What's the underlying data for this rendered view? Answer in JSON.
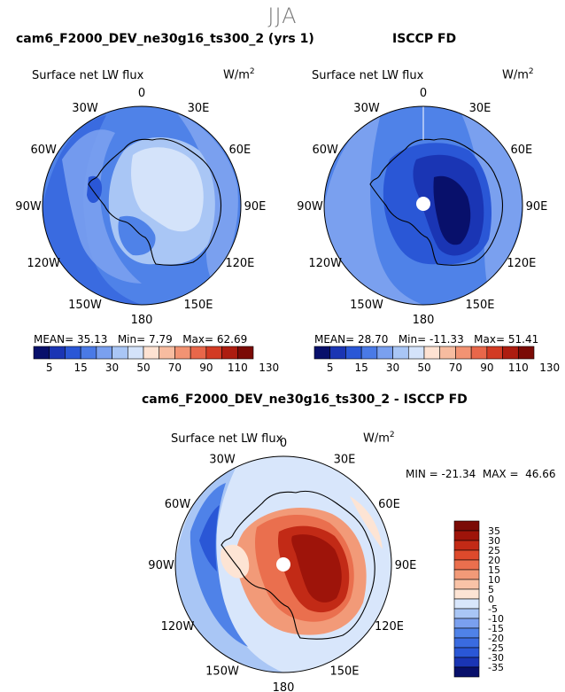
{
  "season": "JJA",
  "panels": [
    {
      "title": "cam6_F2000_DEV_ne30g16_ts300_2 (yrs 1)",
      "variable": "Surface net LW flux",
      "units": "W/m",
      "units_exp": "2",
      "stats": {
        "mean_label": "MEAN=",
        "mean": "35.13",
        "min_label": "Min=",
        "min": "7.79",
        "max_label": "Max=",
        "max": "62.69"
      }
    },
    {
      "title": "ISCCP FD",
      "variable": "Surface net LW flux",
      "units": "W/m",
      "units_exp": "2",
      "stats": {
        "mean_label": "MEAN=",
        "mean": "28.70",
        "min_label": "Min=",
        "min": "-11.33",
        "max_label": "Max=",
        "max": "51.41"
      }
    },
    {
      "title": "cam6_F2000_DEV_ne30g16_ts300_2 - ISCCP FD",
      "variable": "Surface net LW flux",
      "units": "W/m",
      "units_exp": "2",
      "stats_line": "MIN = -21.34  MAX =  46.66"
    }
  ],
  "longitude_labels": [
    "0",
    "30E",
    "60E",
    "90E",
    "120E",
    "150E",
    "180",
    "150W",
    "120W",
    "90W",
    "60W",
    "30W"
  ],
  "chart_data": [
    {
      "type": "heatmap",
      "projection": "south-polar-stereographic",
      "title": "cam6_F2000_DEV_ne30g16_ts300_2 (yrs 1)",
      "variable": "Surface net LW flux",
      "units": "W/m2",
      "mean": 35.13,
      "min": 7.79,
      "max": 62.69,
      "colorbar": {
        "levels": [
          5,
          15,
          30,
          50,
          70,
          90,
          110,
          130
        ],
        "tick_labels": [
          "5",
          "15",
          "30",
          "50",
          "70",
          "90",
          "110",
          "130"
        ],
        "colors": [
          "#08106b",
          "#1a35b4",
          "#2a57d6",
          "#4a7ae6",
          "#7aa0ef",
          "#a9c6f5",
          "#d4e3fa",
          "#fde2d2",
          "#f7bca0",
          "#f29373",
          "#e8674a",
          "#d23b24",
          "#ad1d10",
          "#7b0b06"
        ]
      }
    },
    {
      "type": "heatmap",
      "projection": "south-polar-stereographic",
      "title": "ISCCP FD",
      "variable": "Surface net LW flux",
      "units": "W/m2",
      "mean": 28.7,
      "min": -11.33,
      "max": 51.41,
      "colorbar": {
        "levels": [
          5,
          15,
          30,
          50,
          70,
          90,
          110,
          130
        ],
        "tick_labels": [
          "5",
          "15",
          "30",
          "50",
          "70",
          "90",
          "110",
          "130"
        ],
        "colors": [
          "#08106b",
          "#1a35b4",
          "#2a57d6",
          "#4a7ae6",
          "#7aa0ef",
          "#a9c6f5",
          "#d4e3fa",
          "#fde2d2",
          "#f7bca0",
          "#f29373",
          "#e8674a",
          "#d23b24",
          "#ad1d10",
          "#7b0b06"
        ]
      }
    },
    {
      "type": "heatmap",
      "projection": "south-polar-stereographic",
      "title": "cam6_F2000_DEV_ne30g16_ts300_2 - ISCCP FD",
      "variable": "Surface net LW flux",
      "units": "W/m2",
      "min": -21.34,
      "max": 46.66,
      "colorbar": {
        "levels": [
          -35,
          -30,
          -25,
          -20,
          -15,
          -10,
          -5,
          0,
          5,
          10,
          15,
          20,
          25,
          30,
          35
        ],
        "tick_labels": [
          "-35",
          "-30",
          "-25",
          "-20",
          "-15",
          "-10",
          "-5",
          "0",
          "5",
          "10",
          "15",
          "20",
          "25",
          "30",
          "35"
        ],
        "colors": [
          "#08106b",
          "#1a35b4",
          "#2a57d6",
          "#3a6be0",
          "#4f82e8",
          "#7aa0ef",
          "#a9c6f5",
          "#d8e6fb",
          "#fde4d4",
          "#f9c3a7",
          "#f29a78",
          "#ea6f4e",
          "#dd4a2c",
          "#c22a16",
          "#9e140a",
          "#7b0b06"
        ]
      }
    }
  ]
}
